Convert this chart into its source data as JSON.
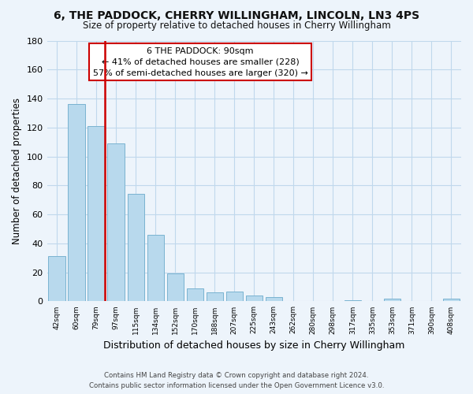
{
  "title": "6, THE PADDOCK, CHERRY WILLINGHAM, LINCOLN, LN3 4PS",
  "subtitle": "Size of property relative to detached houses in Cherry Willingham",
  "xlabel": "Distribution of detached houses by size in Cherry Willingham",
  "ylabel": "Number of detached properties",
  "bar_labels": [
    "42sqm",
    "60sqm",
    "79sqm",
    "97sqm",
    "115sqm",
    "134sqm",
    "152sqm",
    "170sqm",
    "188sqm",
    "207sqm",
    "225sqm",
    "243sqm",
    "262sqm",
    "280sqm",
    "298sqm",
    "317sqm",
    "335sqm",
    "353sqm",
    "371sqm",
    "390sqm",
    "408sqm"
  ],
  "bar_values": [
    31,
    136,
    121,
    109,
    74,
    46,
    19,
    9,
    6,
    7,
    4,
    3,
    0,
    0,
    0,
    1,
    0,
    2,
    0,
    0,
    2
  ],
  "bar_color": "#b8d9ed",
  "bar_edge_color": "#7ab3d0",
  "highlight_vline_index": 2,
  "highlight_color": "#cc0000",
  "ylim": [
    0,
    180
  ],
  "yticks": [
    0,
    20,
    40,
    60,
    80,
    100,
    120,
    140,
    160,
    180
  ],
  "annotation_title": "6 THE PADDOCK: 90sqm",
  "annotation_line1": "← 41% of detached houses are smaller (228)",
  "annotation_line2": "57% of semi-detached houses are larger (320) →",
  "annotation_box_color": "#ffffff",
  "annotation_border_color": "#cc0000",
  "footer_line1": "Contains HM Land Registry data © Crown copyright and database right 2024.",
  "footer_line2": "Contains public sector information licensed under the Open Government Licence v3.0.",
  "bg_color": "#edf4fb",
  "grid_color": "#c0d8ec"
}
